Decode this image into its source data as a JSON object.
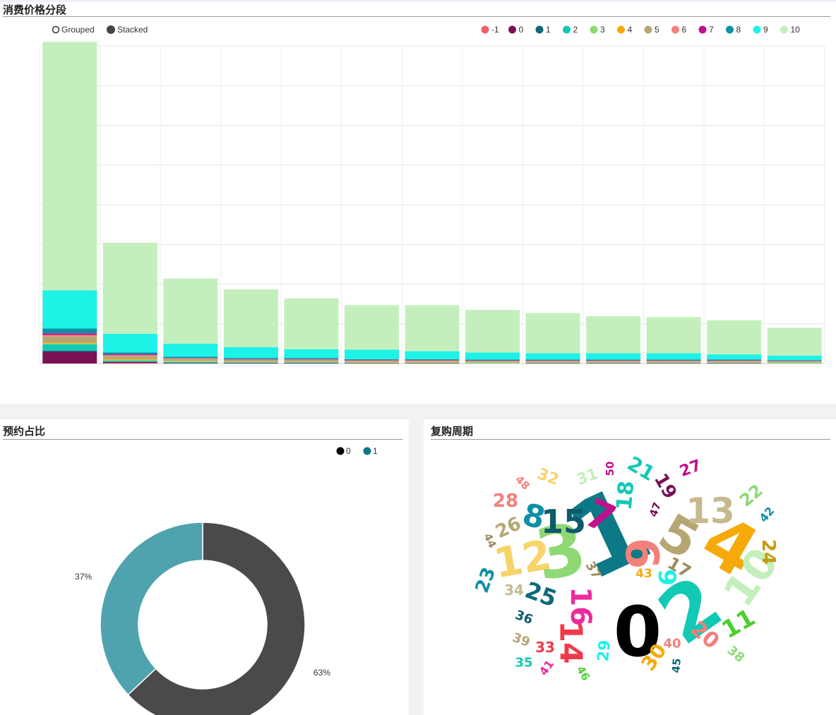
{
  "panels": {
    "top": {
      "title": "消费价格分段"
    },
    "donut": {
      "title": "预约占比"
    },
    "cloud": {
      "title": "复购周期"
    }
  },
  "controls": {
    "grouped": "Grouped",
    "stacked": "Stacked",
    "active": "stacked"
  },
  "chart_data": [
    {
      "type": "bar",
      "stacked": true,
      "title": "消费价格分段",
      "categories": [
        "",
        "",
        "",
        "",
        "",
        "",
        "",
        "",
        "",
        "",
        "",
        "",
        ""
      ],
      "ylim": [
        0,
        8
      ],
      "grid": true,
      "legend_position": "top-right",
      "series": [
        {
          "name": "-1",
          "color": "#ef5f67",
          "values": [
            0.0,
            0.01,
            0.0,
            0.0,
            0.0,
            0.0,
            0.0,
            0.0,
            0.0,
            0.0,
            0.0,
            0.0,
            0.0
          ]
        },
        {
          "name": "0",
          "color": "#7a1155",
          "values": [
            0.3,
            0.03,
            0.01,
            0.01,
            0.01,
            0.01,
            0.01,
            0.0,
            0.01,
            0.01,
            0.01,
            0.01,
            0.0
          ]
        },
        {
          "name": "1",
          "color": "#0d6877",
          "values": [
            0.02,
            0.01,
            0.01,
            0.01,
            0.01,
            0.0,
            0.0,
            0.0,
            0.0,
            0.0,
            0.0,
            0.0,
            0.0
          ]
        },
        {
          "name": "2",
          "color": "#12c9b5",
          "values": [
            0.16,
            0.02,
            0.02,
            0.01,
            0.01,
            0.01,
            0.01,
            0.01,
            0.01,
            0.01,
            0.01,
            0.01,
            0.01
          ]
        },
        {
          "name": "3",
          "color": "#8ed973",
          "values": [
            0.02,
            0.02,
            0.02,
            0.01,
            0.01,
            0.01,
            0.01,
            0.01,
            0.01,
            0.01,
            0.01,
            0.01,
            0.01
          ]
        },
        {
          "name": "4",
          "color": "#f5aa0a",
          "values": [
            0.02,
            0.02,
            0.01,
            0.01,
            0.01,
            0.01,
            0.01,
            0.01,
            0.01,
            0.01,
            0.01,
            0.01,
            0.01
          ]
        },
        {
          "name": "5",
          "color": "#b6a674",
          "values": [
            0.16,
            0.08,
            0.05,
            0.04,
            0.04,
            0.03,
            0.03,
            0.03,
            0.02,
            0.02,
            0.02,
            0.02,
            0.02
          ]
        },
        {
          "name": "6",
          "color": "#f4807a",
          "values": [
            0.04,
            0.02,
            0.01,
            0.01,
            0.01,
            0.01,
            0.01,
            0.01,
            0.01,
            0.01,
            0.01,
            0.01,
            0.01
          ]
        },
        {
          "name": "7",
          "color": "#c20f8c",
          "values": [
            0.04,
            0.02,
            0.01,
            0.01,
            0.01,
            0.01,
            0.01,
            0.01,
            0.01,
            0.01,
            0.01,
            0.01,
            0.01
          ]
        },
        {
          "name": "8",
          "color": "#0f8fa6",
          "values": [
            0.12,
            0.05,
            0.03,
            0.03,
            0.03,
            0.02,
            0.02,
            0.02,
            0.02,
            0.02,
            0.02,
            0.02,
            0.01
          ]
        },
        {
          "name": "9",
          "color": "#1ef2e7",
          "values": [
            0.96,
            0.47,
            0.33,
            0.27,
            0.22,
            0.24,
            0.2,
            0.18,
            0.16,
            0.16,
            0.16,
            0.13,
            0.12
          ]
        },
        {
          "name": "10",
          "color": "#c4efbd",
          "values": [
            6.26,
            2.29,
            1.64,
            1.46,
            1.28,
            1.12,
            1.16,
            1.07,
            1.01,
            0.93,
            0.91,
            0.86,
            0.7
          ]
        }
      ]
    },
    {
      "type": "pie",
      "donut": true,
      "title": "预约占比",
      "legend_position": "top-right",
      "series": [
        {
          "name": "0",
          "label": "63%",
          "value": 63,
          "legend_color": "#000000",
          "slice_color": "#4a4a4a"
        },
        {
          "name": "1",
          "label": "37%",
          "value": 37,
          "legend_color": "#0d7886",
          "slice_color": "#4fa3ae"
        }
      ]
    }
  ],
  "wordcloud": {
    "title": "复购周期",
    "words": [
      {
        "text": "0",
        "color": "#000000"
      },
      {
        "text": "1",
        "color": "#0d7886"
      },
      {
        "text": "2",
        "color": "#12c9b5"
      },
      {
        "text": "3",
        "color": "#8ed973"
      },
      {
        "text": "4",
        "color": "#f5aa0a"
      },
      {
        "text": "5",
        "color": "#b6a674"
      },
      {
        "text": "6",
        "color": "#f4807a"
      },
      {
        "text": "7",
        "color": "#c20f8c"
      },
      {
        "text": "8",
        "color": "#0f8fa6"
      },
      {
        "text": "9",
        "color": "#1ef2e7"
      },
      {
        "text": "10",
        "color": "#c4efbd"
      },
      {
        "text": "11",
        "color": "#4ccf2f"
      },
      {
        "text": "12",
        "color": "#f7d46a"
      },
      {
        "text": "13",
        "color": "#c7b98e"
      },
      {
        "text": "14",
        "color": "#f03a4a"
      },
      {
        "text": "15",
        "color": "#0e5a6b"
      },
      {
        "text": "16",
        "color": "#ee2a9c"
      },
      {
        "text": "17",
        "color": "#9c8c5c"
      },
      {
        "text": "18",
        "color": "#12c9b5"
      },
      {
        "text": "19",
        "color": "#7a1155"
      },
      {
        "text": "20",
        "color": "#f4807a"
      },
      {
        "text": "21",
        "color": "#12c9b5"
      },
      {
        "text": "22",
        "color": "#8ed973"
      },
      {
        "text": "23",
        "color": "#0f8fa6"
      },
      {
        "text": "24",
        "color": "#c79a12"
      },
      {
        "text": "25",
        "color": "#0d6877"
      },
      {
        "text": "26",
        "color": "#b6a674"
      },
      {
        "text": "27",
        "color": "#c20f8c"
      },
      {
        "text": "28",
        "color": "#f4807a"
      },
      {
        "text": "29",
        "color": "#1ef2e7"
      },
      {
        "text": "30",
        "color": "#f5aa0a"
      },
      {
        "text": "31",
        "color": "#c4efbd"
      },
      {
        "text": "32",
        "color": "#f7d46a"
      },
      {
        "text": "33",
        "color": "#f03a4a"
      },
      {
        "text": "34",
        "color": "#c7b98e"
      },
      {
        "text": "35",
        "color": "#12c9b5"
      },
      {
        "text": "36",
        "color": "#0e5a6b"
      },
      {
        "text": "37",
        "color": "#9c8c5c"
      },
      {
        "text": "38",
        "color": "#8ed973"
      },
      {
        "text": "39",
        "color": "#b6a674"
      },
      {
        "text": "40",
        "color": "#f4807a"
      },
      {
        "text": "41",
        "color": "#ee2a9c"
      },
      {
        "text": "42",
        "color": "#0f8fa6"
      },
      {
        "text": "43",
        "color": "#f5aa0a"
      },
      {
        "text": "44",
        "color": "#9c8c5c"
      },
      {
        "text": "45",
        "color": "#0d6877"
      },
      {
        "text": "46",
        "color": "#4ccf2f"
      },
      {
        "text": "47",
        "color": "#7a1155"
      },
      {
        "text": "48",
        "color": "#f4807a"
      },
      {
        "text": "50",
        "color": "#c20f8c"
      }
    ]
  }
}
